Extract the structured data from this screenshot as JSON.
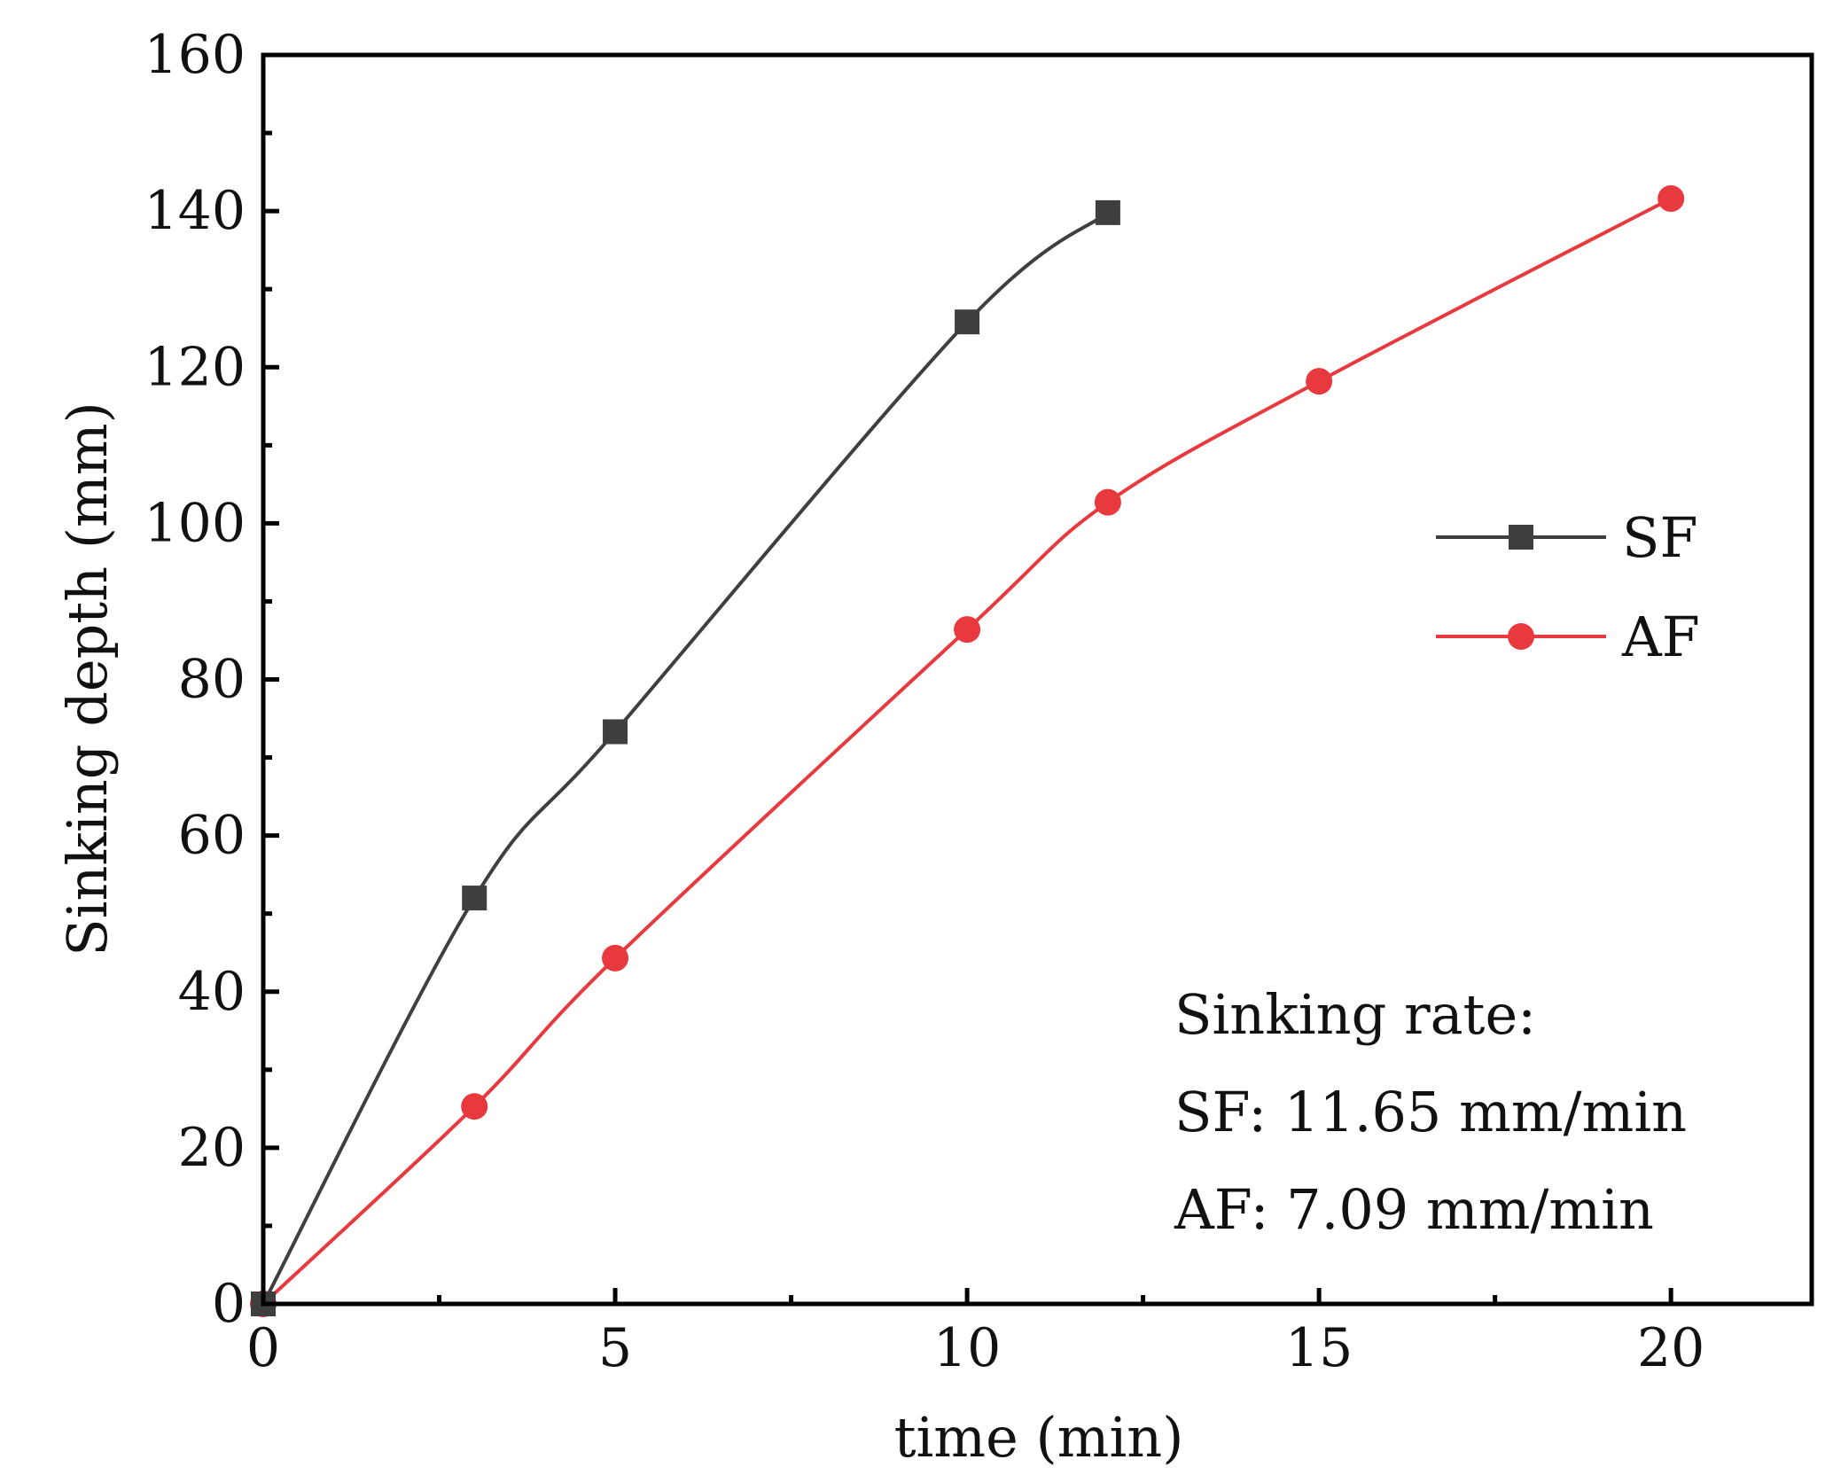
{
  "chart_data": {
    "type": "line",
    "xlabel": "time (min)",
    "ylabel": "Sinking depth (mm)",
    "xlim": [
      0,
      22
    ],
    "ylim": [
      0,
      160
    ],
    "xticks": [
      0,
      5,
      10,
      15,
      20
    ],
    "yticks": [
      0,
      20,
      40,
      60,
      80,
      100,
      120,
      140,
      160
    ],
    "x_minor_step": 2.5,
    "y_minor_step": 10,
    "grid": false,
    "legend_position": "right-middle",
    "series": [
      {
        "name": "SF",
        "color": "#3f3f3f",
        "marker": "square",
        "x": [
          0,
          3,
          5,
          10,
          12
        ],
        "y": [
          0,
          52,
          73.3,
          125.8,
          139.8
        ]
      },
      {
        "name": "AF",
        "color": "#e8393f",
        "marker": "circle",
        "x": [
          0,
          3,
          5,
          10,
          12,
          15,
          20
        ],
        "y": [
          0,
          25.3,
          44.3,
          86.4,
          102.7,
          118.2,
          141.6
        ]
      }
    ],
    "annotations": [
      "Sinking rate:",
      "SF: 11.65 mm/min",
      "AF: 7.09 mm/min"
    ]
  }
}
